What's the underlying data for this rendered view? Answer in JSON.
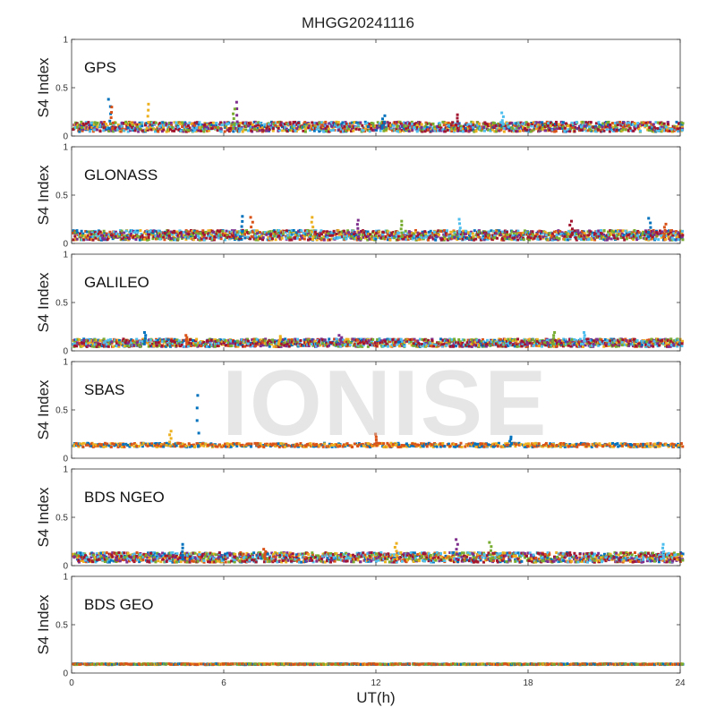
{
  "chart_data": {
    "type": "scatter",
    "title": "MHGG20241116",
    "xlabel": "UT(h)",
    "ylabel": "S4 Index",
    "xlim": [
      0,
      24
    ],
    "ylim": [
      0,
      1
    ],
    "x_ticks": [
      "0",
      "6",
      "12",
      "18",
      "24"
    ],
    "y_ticks": [
      "0",
      "0.5",
      "1"
    ],
    "watermark": "IONISE",
    "series_colors": [
      "#0072BD",
      "#D95319",
      "#EDB120",
      "#7E2F8E",
      "#77AC30",
      "#4DBEEE",
      "#A2142F"
    ],
    "panels": [
      {
        "label": "GPS",
        "base": 0.08,
        "spread": 0.05,
        "colors": [
          "#0072BD",
          "#D95319",
          "#EDB120",
          "#7E2F8E",
          "#77AC30",
          "#4DBEEE",
          "#A2142F"
        ],
        "peaks": [
          [
            1.5,
            0.38
          ],
          [
            1.6,
            0.3
          ],
          [
            3.0,
            0.33
          ],
          [
            6.5,
            0.35
          ],
          [
            6.4,
            0.28
          ],
          [
            17.0,
            0.24
          ],
          [
            15.2,
            0.22
          ],
          [
            12.3,
            0.21
          ]
        ]
      },
      {
        "label": "GLONASS",
        "base": 0.07,
        "spread": 0.05,
        "colors": [
          "#0072BD",
          "#D95319",
          "#EDB120",
          "#7E2F8E",
          "#77AC30",
          "#4DBEEE",
          "#A2142F"
        ],
        "peaks": [
          [
            6.7,
            0.28
          ],
          [
            7.1,
            0.27
          ],
          [
            9.5,
            0.27
          ],
          [
            11.3,
            0.24
          ],
          [
            13.0,
            0.23
          ],
          [
            15.3,
            0.25
          ],
          [
            19.7,
            0.23
          ],
          [
            22.8,
            0.26
          ],
          [
            23.4,
            0.2
          ]
        ]
      },
      {
        "label": "GALILEO",
        "base": 0.07,
        "spread": 0.04,
        "colors": [
          "#0072BD",
          "#D95319",
          "#EDB120",
          "#7E2F8E",
          "#77AC30",
          "#4DBEEE",
          "#A2142F"
        ],
        "peaks": [
          [
            2.9,
            0.19
          ],
          [
            4.5,
            0.16
          ],
          [
            8.2,
            0.15
          ],
          [
            10.6,
            0.16
          ],
          [
            19.0,
            0.19
          ],
          [
            20.2,
            0.19
          ]
        ]
      },
      {
        "label": "SBAS",
        "base": 0.13,
        "spread": 0.02,
        "colors": [
          "#0072BD",
          "#EDB120",
          "#D95319"
        ],
        "peaks": [
          [
            5.0,
            0.65
          ],
          [
            3.9,
            0.28
          ],
          [
            12.0,
            0.25
          ],
          [
            17.3,
            0.22
          ]
        ]
      },
      {
        "label": "BDS NGEO",
        "base": 0.07,
        "spread": 0.05,
        "colors": [
          "#0072BD",
          "#D95319",
          "#EDB120",
          "#7E2F8E",
          "#77AC30",
          "#4DBEEE",
          "#A2142F"
        ],
        "peaks": [
          [
            4.4,
            0.22
          ],
          [
            7.6,
            0.17
          ],
          [
            12.8,
            0.23
          ],
          [
            15.2,
            0.27
          ],
          [
            16.5,
            0.24
          ],
          [
            23.3,
            0.22
          ]
        ]
      },
      {
        "label": "BDS GEO",
        "base": 0.09,
        "spread": 0.005,
        "colors": [
          "#EDB120",
          "#0072BD",
          "#77AC30",
          "#D95319"
        ],
        "peaks": []
      }
    ]
  }
}
